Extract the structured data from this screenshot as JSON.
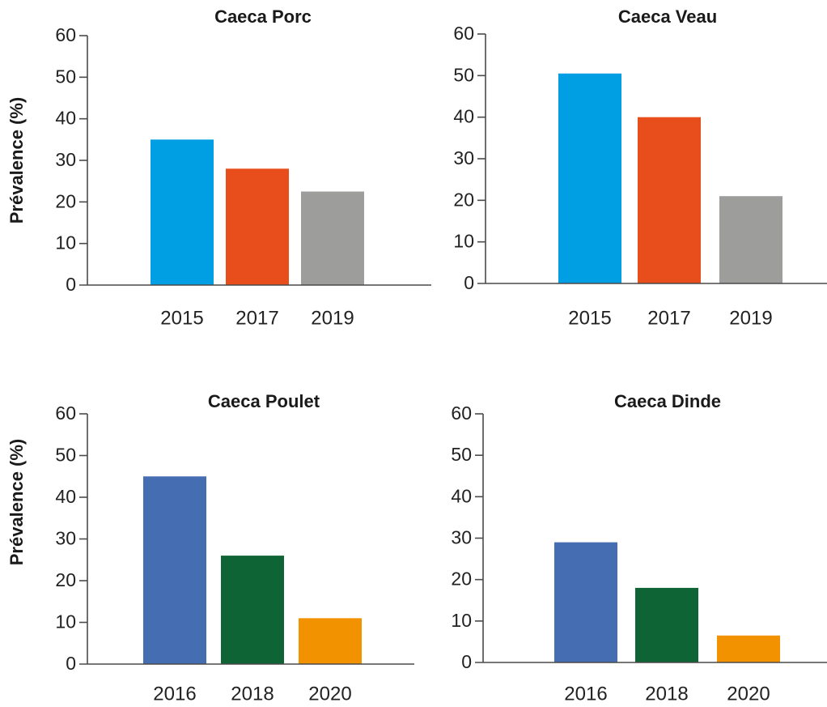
{
  "chart_data": [
    {
      "type": "bar",
      "title": "Caeca Porc",
      "xlabel": "",
      "ylabel": "Prévalence (%)",
      "ylim": [
        0,
        60
      ],
      "yticks": [
        0,
        10,
        20,
        30,
        40,
        50,
        60
      ],
      "categories": [
        "2015",
        "2017",
        "2019"
      ],
      "values": [
        35,
        28,
        22.5
      ],
      "colors": [
        "#009fe3",
        "#e84e1b",
        "#9d9d9c"
      ],
      "grid": false,
      "legend": "none"
    },
    {
      "type": "bar",
      "title": "Caeca Veau",
      "xlabel": "",
      "ylabel": "",
      "ylim": [
        0,
        60
      ],
      "yticks": [
        0,
        10,
        20,
        30,
        40,
        50,
        60
      ],
      "categories": [
        "2015",
        "2017",
        "2019"
      ],
      "values": [
        50.5,
        40,
        21
      ],
      "colors": [
        "#009fe3",
        "#e84e1b",
        "#9d9d9c"
      ],
      "grid": false,
      "legend": "none"
    },
    {
      "type": "bar",
      "title": "Caeca Poulet",
      "xlabel": "",
      "ylabel": "Prévalence (%)",
      "ylim": [
        0,
        60
      ],
      "yticks": [
        0,
        10,
        20,
        30,
        40,
        50,
        60
      ],
      "categories": [
        "2016",
        "2018",
        "2020"
      ],
      "values": [
        45,
        26,
        11
      ],
      "colors": [
        "#446db2",
        "#0e6434",
        "#f39200"
      ],
      "grid": false,
      "legend": "none"
    },
    {
      "type": "bar",
      "title": "Caeca Dinde",
      "xlabel": "",
      "ylabel": "",
      "ylim": [
        0,
        60
      ],
      "yticks": [
        0,
        10,
        20,
        30,
        40,
        50,
        60
      ],
      "categories": [
        "2016",
        "2018",
        "2020"
      ],
      "values": [
        29,
        18,
        6.5
      ],
      "colors": [
        "#446db2",
        "#0e6434",
        "#f39200"
      ],
      "grid": false,
      "legend": "none"
    }
  ]
}
